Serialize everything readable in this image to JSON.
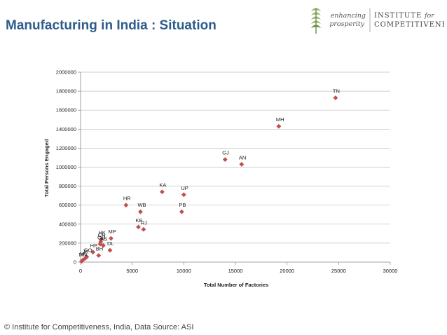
{
  "slide": {
    "title": "Manufacturing in India : Situation",
    "footer": "© Institute for Competitiveness, India, Data Source: ASI"
  },
  "logo": {
    "tagline_1": "enhancing",
    "tagline_2": "prosperity",
    "name_1": "INSTITUTE",
    "name_1b": "for",
    "name_2": "COMPETITIVENESS",
    "icon": "wheat-leaf-icon"
  },
  "colors": {
    "title": "#2E5C8A",
    "marker": "#C0504D",
    "logo_accent": "#6B8E3A"
  },
  "chart_data": {
    "type": "scatter",
    "xlabel": "Total Number of Factories",
    "ylabel": "Total Persons Engaged",
    "xlim": [
      0,
      30000
    ],
    "ylim": [
      0,
      2000000
    ],
    "x_ticks": [
      "0",
      "5000",
      "10000",
      "15000",
      "20000",
      "25000",
      "30000"
    ],
    "y_ticks": [
      "0",
      "200000",
      "400000",
      "600000",
      "800000",
      "1000000",
      "1200000",
      "1400000",
      "1600000",
      "1800000",
      "2000000"
    ],
    "grid": "horizontal",
    "marker": "diamond",
    "points": [
      {
        "label": "TN",
        "x": 24700,
        "y": 1730000
      },
      {
        "label": "MH",
        "x": 19200,
        "y": 1430000
      },
      {
        "label": "GJ",
        "x": 14000,
        "y": 1080000
      },
      {
        "label": "AN",
        "x": 15600,
        "y": 1030000
      },
      {
        "label": "KA",
        "x": 7900,
        "y": 740000
      },
      {
        "label": "UP",
        "x": 10000,
        "y": 710000
      },
      {
        "label": "HR",
        "x": 4400,
        "y": 600000
      },
      {
        "label": "WB",
        "x": 5800,
        "y": 530000
      },
      {
        "label": "PB",
        "x": 9800,
        "y": 530000
      },
      {
        "label": "KE",
        "x": 5600,
        "y": 370000
      },
      {
        "label": "RJ",
        "x": 6100,
        "y": 345000
      },
      {
        "label": "MP",
        "x": 2950,
        "y": 250000
      },
      {
        "label": "HK",
        "x": 2000,
        "y": 240000
      },
      {
        "label": "CH",
        "x": 1950,
        "y": 215000
      },
      {
        "label": "OR",
        "x": 1900,
        "y": 190000
      },
      {
        "label": "AS",
        "x": 2200,
        "y": 175000
      },
      {
        "label": "DL",
        "x": 2850,
        "y": 125000
      },
      {
        "label": "HP",
        "x": 1200,
        "y": 105000
      },
      {
        "label": "BH",
        "x": 1750,
        "y": 70000
      },
      {
        "label": "GO",
        "x": 600,
        "y": 55000
      },
      {
        "label": "JK",
        "x": 450,
        "y": 40000
      },
      {
        "label": "ML",
        "x": 200,
        "y": 20000
      },
      {
        "label": "MN",
        "x": 100,
        "y": 8000
      }
    ]
  }
}
